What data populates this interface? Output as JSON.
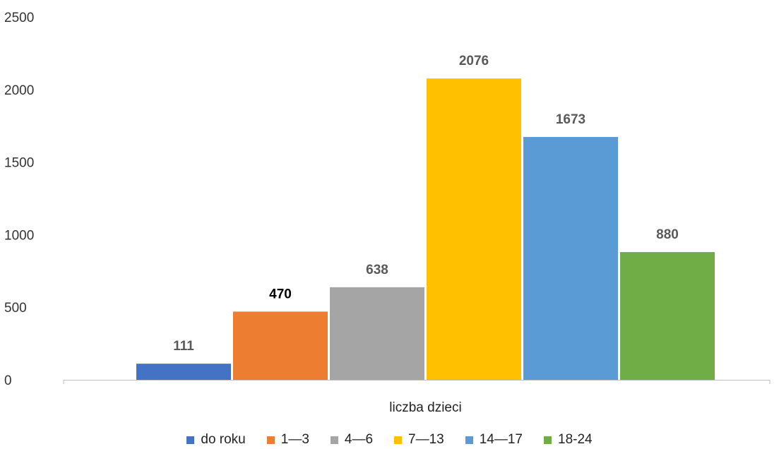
{
  "chart_data": {
    "type": "bar",
    "categories": [
      "liczba dzieci"
    ],
    "series": [
      {
        "name": "do roku",
        "values": [
          111
        ],
        "color": "#4472C4"
      },
      {
        "name": "1—3",
        "values": [
          470
        ],
        "color": "#ED7D31"
      },
      {
        "name": "4—6",
        "values": [
          638
        ],
        "color": "#A5A5A5"
      },
      {
        "name": "7—13",
        "values": [
          2076
        ],
        "color": "#FFC000"
      },
      {
        "name": "14—17",
        "values": [
          1673
        ],
        "color": "#5B9BD5"
      },
      {
        "name": "18-24",
        "values": [
          880
        ],
        "color": "#70AD47"
      }
    ],
    "data_label_colors": [
      "#595959",
      "#000000",
      "#595959",
      "#595959",
      "#595959",
      "#595959"
    ],
    "y_ticks": [
      0,
      500,
      1000,
      1500,
      2000,
      2500
    ],
    "ylim": [
      0,
      2500
    ],
    "grid": false,
    "legend_position": "bottom",
    "title": "",
    "xlabel": "",
    "ylabel": ""
  }
}
